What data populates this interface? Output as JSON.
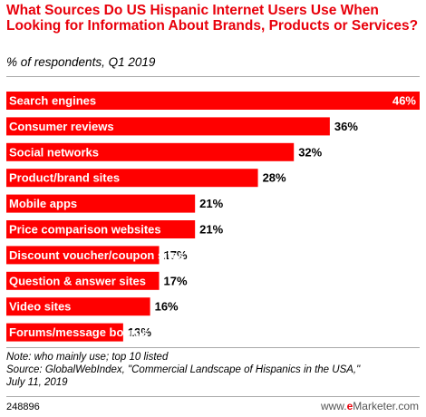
{
  "title": "What Sources Do US Hispanic Internet Users Use When Looking for Information About Brands, Products or Services?",
  "subtitle": "% of respondents, Q1 2019",
  "colors": {
    "bar": "#ff0000",
    "accent": "#e8000b"
  },
  "chart_data": {
    "type": "bar",
    "orientation": "horizontal",
    "title": "What Sources Do US Hispanic Internet Users Use When Looking for Information About Brands, Products or Services?",
    "subtitle": "% of respondents, Q1 2019",
    "categories": [
      "Search engines",
      "Consumer reviews",
      "Social networks",
      "Product/brand sites",
      "Mobile apps",
      "Price comparison websites",
      "Discount voucher/coupon sites",
      "Question & answer sites",
      "Video sites",
      "Forums/message boards"
    ],
    "values": [
      46,
      36,
      32,
      28,
      21,
      21,
      17,
      17,
      16,
      13
    ],
    "value_labels": [
      "46%",
      "36%",
      "32%",
      "28%",
      "21%",
      "21%",
      "17%",
      "17%",
      "16%",
      "13%"
    ],
    "xlim": [
      0,
      46
    ],
    "grid": false,
    "legend": "none"
  },
  "footer": {
    "note": "Note: who mainly use; top 10 listed",
    "source_line1": "Source: GlobalWebIndex, \"Commercial Landscape of Hispanics in the USA,\"",
    "source_line2": "July 11, 2019",
    "id": "248896",
    "brand_prefix": "www.",
    "brand_e": "e",
    "brand_name": "Marketer",
    "brand_suffix": ".com"
  }
}
